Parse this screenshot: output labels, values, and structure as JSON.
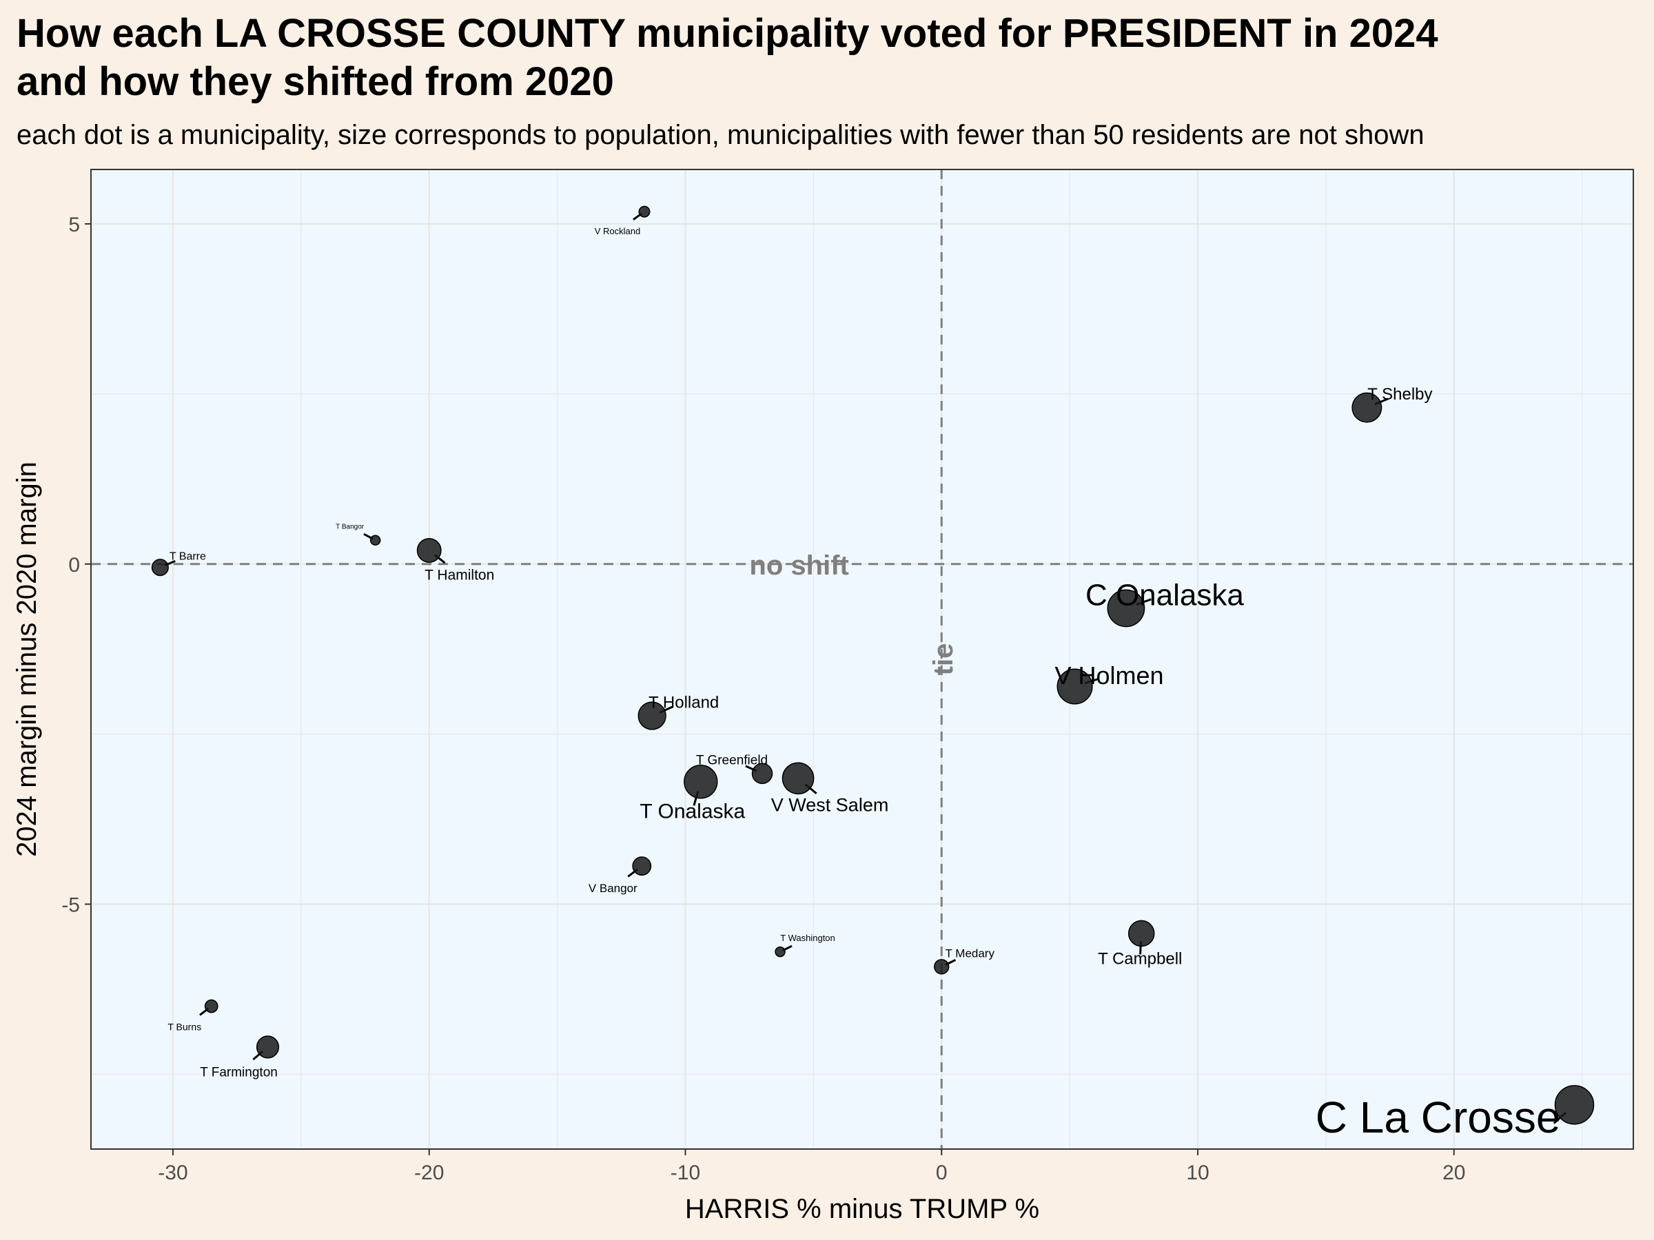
{
  "chart_data": {
    "type": "scatter",
    "title": "How each LA CROSSE COUNTY municipality voted for PRESIDENT in 2024\nand how they shifted from 2020",
    "subtitle": "each dot is a municipality, size corresponds to population, municipalities with fewer than 50 residents are not shown",
    "xlabel": "HARRIS % minus TRUMP %",
    "ylabel": "2024 margin minus 2020 margin",
    "xlim": [
      -33.2,
      27
    ],
    "ylim": [
      -8.6,
      5.8
    ],
    "x_ticks": [
      -30,
      -20,
      -10,
      0,
      10,
      20
    ],
    "y_ticks": [
      -5,
      0,
      5
    ],
    "x_tick_labels": [
      "-30",
      "-20",
      "-10",
      "0",
      "10",
      "20"
    ],
    "y_tick_labels": [
      "-5",
      "0",
      "5"
    ],
    "reference_lines": {
      "horizontal": {
        "y": 0,
        "label": "no shift"
      },
      "vertical": {
        "x": 0,
        "label": "tie"
      }
    },
    "grid": true,
    "colors": {
      "page_background": "#faf0e6",
      "panel_background": "#f0f8ff",
      "point": "#1a1a1a",
      "reference": "#7f7f7f"
    },
    "points": [
      {
        "name": "C La Crosse",
        "x": 24.7,
        "y": -7.95,
        "population_rank": 1
      },
      {
        "name": "C Onalaska",
        "x": 7.2,
        "y": -0.65,
        "population_rank": 2
      },
      {
        "name": "V Holmen",
        "x": 5.2,
        "y": -1.8,
        "population_rank": 3
      },
      {
        "name": "T Onalaska",
        "x": -9.4,
        "y": -3.2,
        "population_rank": 4
      },
      {
        "name": "V West Salem",
        "x": -5.6,
        "y": -3.15,
        "population_rank": 5
      },
      {
        "name": "T Shelby",
        "x": 16.6,
        "y": 2.3,
        "population_rank": 6
      },
      {
        "name": "T Holland",
        "x": -11.3,
        "y": -2.23,
        "population_rank": 7
      },
      {
        "name": "T Campbell",
        "x": 7.8,
        "y": -5.43,
        "population_rank": 8
      },
      {
        "name": "T Hamilton",
        "x": -20.0,
        "y": 0.2,
        "population_rank": 9
      },
      {
        "name": "T Farmington",
        "x": -26.3,
        "y": -7.1,
        "population_rank": 10
      },
      {
        "name": "T Greenfield",
        "x": -7.0,
        "y": -3.08,
        "population_rank": 11
      },
      {
        "name": "V Bangor",
        "x": -11.7,
        "y": -4.44,
        "population_rank": 12
      },
      {
        "name": "T Barre",
        "x": -30.5,
        "y": -0.05,
        "population_rank": 13
      },
      {
        "name": "T Medary",
        "x": 0.0,
        "y": -5.92,
        "population_rank": 14
      },
      {
        "name": "T Burns",
        "x": -28.5,
        "y": -6.5,
        "population_rank": 15
      },
      {
        "name": "V Rockland",
        "x": -11.6,
        "y": 5.18,
        "population_rank": 16
      },
      {
        "name": "T Washington",
        "x": -6.3,
        "y": -5.7,
        "population_rank": 17
      },
      {
        "name": "T Bangor",
        "x": -22.1,
        "y": 0.35,
        "population_rank": 18
      }
    ]
  }
}
